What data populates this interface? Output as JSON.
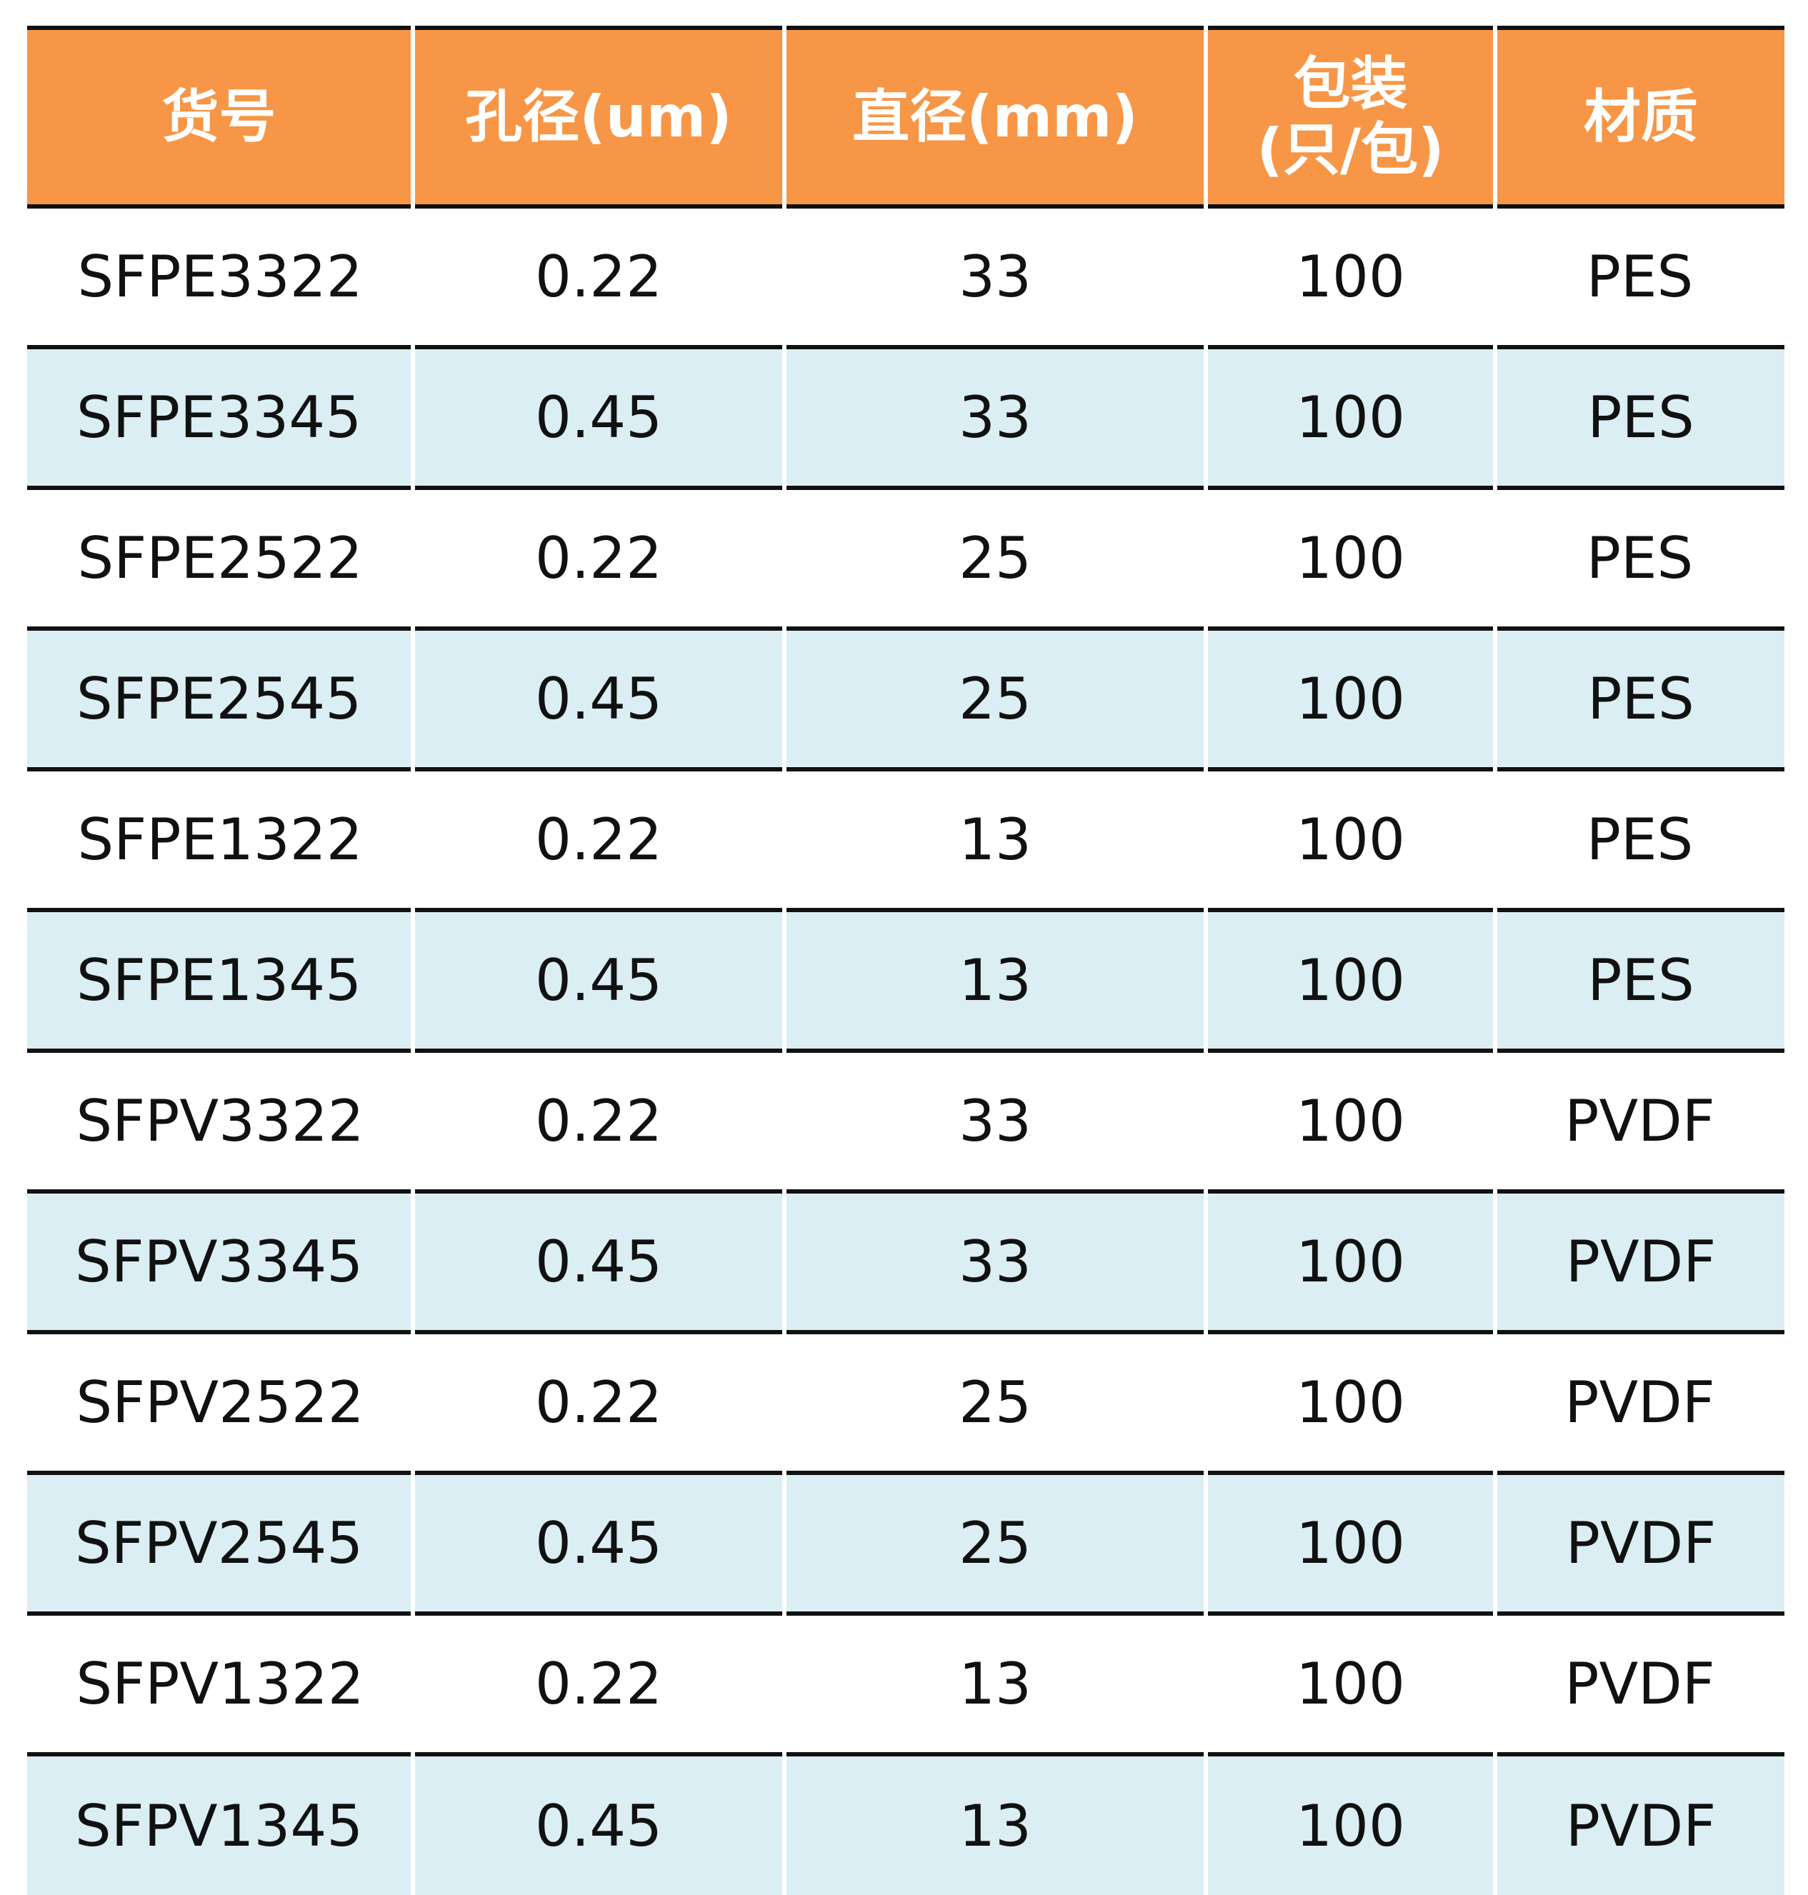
{
  "table": {
    "header": {
      "item_no": "货号",
      "pore_size": "孔径(um)",
      "diameter": "直径(mm)",
      "package_line1": "包装",
      "package_line2": "(只/包)",
      "material": "材质"
    },
    "rows": [
      [
        "SFPE3322",
        "0.22",
        "33",
        "100",
        "PES"
      ],
      [
        "SFPE3345",
        "0.45",
        "33",
        "100",
        "PES"
      ],
      [
        "SFPE2522",
        "0.22",
        "25",
        "100",
        "PES"
      ],
      [
        "SFPE2545",
        "0.45",
        "25",
        "100",
        "PES"
      ],
      [
        "SFPE1322",
        "0.22",
        "13",
        "100",
        "PES"
      ],
      [
        "SFPE1345",
        "0.45",
        "13",
        "100",
        "PES"
      ],
      [
        "SFPV3322",
        "0.22",
        "33",
        "100",
        "PVDF"
      ],
      [
        "SFPV3345",
        "0.45",
        "33",
        "100",
        "PVDF"
      ],
      [
        "SFPV2522",
        "0.22",
        "25",
        "100",
        "PVDF"
      ],
      [
        "SFPV2545",
        "0.45",
        "25",
        "100",
        "PVDF"
      ],
      [
        "SFPV1322",
        "0.22",
        "13",
        "100",
        "PVDF"
      ],
      [
        "SFPV1345",
        "0.45",
        "13",
        "100",
        "PVDF"
      ]
    ]
  },
  "colors": {
    "header_bg": "#f79646",
    "header_text": "#ffffff",
    "stripe_bg": "#daeef3",
    "rule": "#111111"
  }
}
